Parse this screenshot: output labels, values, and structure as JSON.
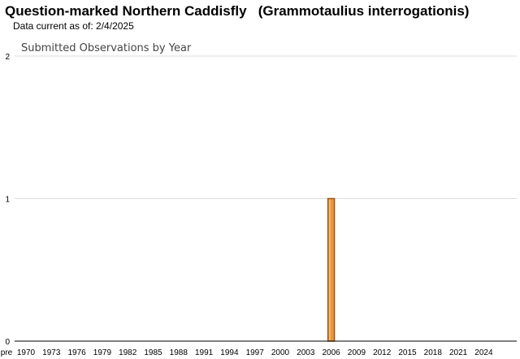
{
  "page": {
    "title": "Question-marked Northern Caddisfly   (Grammotaulius interrogationis)",
    "data_current": "Data current as of: 2/4/2025"
  },
  "chart_data": {
    "type": "bar",
    "title": "Submitted Observations by Year",
    "xlabel": "",
    "ylabel": "",
    "ylim": [
      0,
      2
    ],
    "yticks": [
      0,
      1,
      2
    ],
    "grid": true,
    "legend": "none",
    "bar_color": "#e8963a",
    "bar_edge_color": "#a0561a",
    "xtick_labels": [
      "pre",
      "1970",
      "1973",
      "1976",
      "1979",
      "1982",
      "1985",
      "1988",
      "1991",
      "1994",
      "1997",
      "2000",
      "2003",
      "2006",
      "2009",
      "2012",
      "2015",
      "2018",
      "2021",
      "2024"
    ],
    "categories": [
      "pre",
      "1970",
      "1971",
      "1972",
      "1973",
      "1974",
      "1975",
      "1976",
      "1977",
      "1978",
      "1979",
      "1980",
      "1981",
      "1982",
      "1983",
      "1984",
      "1985",
      "1986",
      "1987",
      "1988",
      "1989",
      "1990",
      "1991",
      "1992",
      "1993",
      "1994",
      "1995",
      "1996",
      "1997",
      "1998",
      "1999",
      "2000",
      "2001",
      "2002",
      "2003",
      "2004",
      "2005",
      "2006",
      "2007",
      "2008",
      "2009",
      "2010",
      "2011",
      "2012",
      "2013",
      "2014",
      "2015",
      "2016",
      "2017",
      "2018",
      "2019",
      "2020",
      "2021",
      "2022",
      "2023",
      "2024",
      "2025"
    ],
    "values": [
      0,
      0,
      0,
      0,
      0,
      0,
      0,
      0,
      0,
      0,
      0,
      0,
      0,
      0,
      0,
      0,
      0,
      0,
      0,
      0,
      0,
      0,
      0,
      0,
      0,
      0,
      0,
      0,
      0,
      0,
      0,
      0,
      0,
      0,
      0,
      0,
      0,
      1,
      0,
      0,
      0,
      0,
      0,
      0,
      0,
      0,
      0,
      0,
      0,
      0,
      0,
      0,
      0,
      0,
      0,
      0,
      0
    ]
  }
}
